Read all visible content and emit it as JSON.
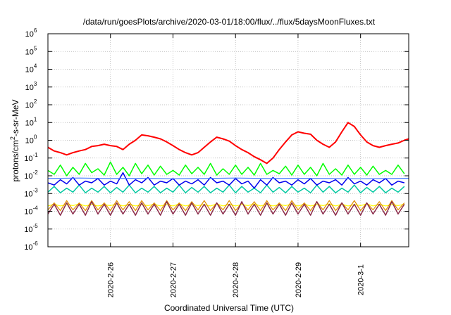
{
  "chart_data": {
    "type": "line",
    "title": "/data/run/goesPlots/archive/2020-03-01/18:00/flux/../flux/5daysMoonFluxes.txt",
    "xlabel": "Coordinated Universal Time (UTC)",
    "ylabel": {
      "pre": "protons/cm",
      "sup": "2",
      "post": "-s-sr-MeV"
    },
    "xlim": [
      0,
      5.77
    ],
    "ylim_exp": [
      -6,
      6
    ],
    "yscale": "log",
    "grid": true,
    "legend": "none",
    "x_ticks": [
      {
        "x": 1,
        "label": "2020-2-26"
      },
      {
        "x": 2,
        "label": "2020-2-27"
      },
      {
        "x": 3,
        "label": "2020-2-28"
      },
      {
        "x": 4,
        "label": "2020-2-29"
      },
      {
        "x": 5,
        "label": "2020-3-1"
      }
    ],
    "y_ticks": [
      {
        "exp": -6,
        "base": "10",
        "sup": "-6"
      },
      {
        "exp": -5,
        "base": "10",
        "sup": "-5"
      },
      {
        "exp": -4,
        "base": "10",
        "sup": "-4"
      },
      {
        "exp": -3,
        "base": "10",
        "sup": "-3"
      },
      {
        "exp": -2,
        "base": "10",
        "sup": "-2"
      },
      {
        "exp": -1,
        "base": "10",
        "sup": "-1"
      },
      {
        "exp": 0,
        "base": "10",
        "sup": "0"
      },
      {
        "exp": 1,
        "base": "10",
        "sup": "1"
      },
      {
        "exp": 2,
        "base": "10",
        "sup": "2"
      },
      {
        "exp": 3,
        "base": "10",
        "sup": "3"
      },
      {
        "exp": 4,
        "base": "10",
        "sup": "4"
      },
      {
        "exp": 5,
        "base": "10",
        "sup": "5"
      },
      {
        "exp": 6,
        "base": "10",
        "sup": "6"
      }
    ],
    "series": [
      {
        "color": "#00ff00",
        "width": 1.5,
        "x": [
          0,
          0.1,
          0.2,
          0.3,
          0.4,
          0.5,
          0.6,
          0.7,
          0.8,
          0.9,
          1.0,
          1.1,
          1.2,
          1.3,
          1.4,
          1.5,
          1.6,
          1.7,
          1.8,
          1.9,
          2.0,
          2.1,
          2.2,
          2.3,
          2.4,
          2.5,
          2.6,
          2.7,
          2.8,
          2.9,
          3.0,
          3.1,
          3.2,
          3.3,
          3.4,
          3.5,
          3.6,
          3.7,
          3.8,
          3.9,
          4.0,
          4.1,
          4.2,
          4.3,
          4.4,
          4.5,
          4.6,
          4.7,
          4.8,
          4.9,
          5.0,
          5.1,
          5.2,
          5.3,
          5.4,
          5.5,
          5.6,
          5.7
        ],
        "y": [
          0.02,
          0.012,
          0.04,
          0.01,
          0.03,
          0.012,
          0.05,
          0.015,
          0.025,
          0.011,
          0.06,
          0.012,
          0.03,
          0.01,
          0.05,
          0.013,
          0.04,
          0.011,
          0.035,
          0.012,
          0.02,
          0.011,
          0.04,
          0.013,
          0.03,
          0.012,
          0.05,
          0.011,
          0.025,
          0.012,
          0.04,
          0.012,
          0.03,
          0.011,
          0.05,
          0.012,
          0.02,
          0.013,
          0.035,
          0.011,
          0.04,
          0.012,
          0.03,
          0.01,
          0.05,
          0.012,
          0.025,
          0.011,
          0.04,
          0.012,
          0.03,
          0.011,
          0.035,
          0.012,
          0.02,
          0.012,
          0.04,
          0.013
        ]
      },
      {
        "color": "#00c8a0",
        "width": 1.5,
        "x": [
          0,
          0.1,
          0.2,
          0.3,
          0.4,
          0.5,
          0.6,
          0.7,
          0.8,
          0.9,
          1.0,
          1.1,
          1.2,
          1.3,
          1.4,
          1.5,
          1.6,
          1.7,
          1.8,
          1.9,
          2.0,
          2.1,
          2.2,
          2.3,
          2.4,
          2.5,
          2.6,
          2.7,
          2.8,
          2.9,
          3.0,
          3.1,
          3.2,
          3.3,
          3.4,
          3.5,
          3.6,
          3.7,
          3.8,
          3.9,
          4.0,
          4.1,
          4.2,
          4.3,
          4.4,
          4.5,
          4.6,
          4.7,
          4.8,
          4.9,
          5.0,
          5.1,
          5.2,
          5.3,
          5.4,
          5.5,
          5.6,
          5.7
        ],
        "y": [
          0.0012,
          0.0025,
          0.0011,
          0.002,
          0.0012,
          0.003,
          0.0011,
          0.002,
          0.0012,
          0.0025,
          0.0011,
          0.0022,
          0.0012,
          0.003,
          0.0011,
          0.002,
          0.0012,
          0.0025,
          0.0011,
          0.002,
          0.0012,
          0.003,
          0.0011,
          0.0022,
          0.0012,
          0.0025,
          0.0011,
          0.002,
          0.0012,
          0.003,
          0.0011,
          0.0025,
          0.0012,
          0.002,
          0.0011,
          0.003,
          0.0012,
          0.0022,
          0.0011,
          0.0025,
          0.0012,
          0.002,
          0.0011,
          0.003,
          0.0012,
          0.0025,
          0.0011,
          0.002,
          0.0012,
          0.003,
          0.0011,
          0.0022,
          0.0012,
          0.0025,
          0.0011,
          0.002,
          0.0012,
          0.0025
        ]
      },
      {
        "color": "#0000ee",
        "width": 1.5,
        "x": [
          0,
          0.1,
          0.2,
          0.3,
          0.4,
          0.5,
          0.6,
          0.7,
          0.8,
          0.9,
          1.0,
          1.1,
          1.2,
          1.3,
          1.4,
          1.5,
          1.6,
          1.7,
          1.8,
          1.9,
          2.0,
          2.1,
          2.2,
          2.3,
          2.4,
          2.5,
          2.6,
          2.7,
          2.8,
          2.9,
          3.0,
          3.1,
          3.2,
          3.3,
          3.4,
          3.5,
          3.6,
          3.7,
          3.8,
          3.9,
          4.0,
          4.1,
          4.2,
          4.3,
          4.4,
          4.5,
          4.6,
          4.7,
          4.8,
          4.9,
          5.0,
          5.1,
          5.2,
          5.3,
          5.4,
          5.5,
          5.6,
          5.7
        ],
        "y": [
          0.004,
          0.003,
          0.006,
          0.0035,
          0.008,
          0.003,
          0.005,
          0.004,
          0.007,
          0.003,
          0.005,
          0.0035,
          0.015,
          0.003,
          0.006,
          0.004,
          0.008,
          0.003,
          0.005,
          0.004,
          0.007,
          0.003,
          0.005,
          0.0035,
          0.006,
          0.003,
          0.008,
          0.004,
          0.005,
          0.003,
          0.007,
          0.0035,
          0.005,
          0.002,
          0.006,
          0.003,
          0.008,
          0.004,
          0.005,
          0.003,
          0.006,
          0.0035,
          0.007,
          0.003,
          0.005,
          0.004,
          0.006,
          0.003,
          0.008,
          0.0035,
          0.005,
          0.003,
          0.006,
          0.004,
          0.007,
          0.003,
          0.005,
          0.004
        ]
      },
      {
        "color": "#4477ff",
        "width": 1.2,
        "x": [
          0,
          0.5,
          1.0,
          1.5,
          2.0,
          2.5,
          3.0,
          3.5,
          4.0,
          4.5,
          5.0,
          5.5,
          5.77
        ],
        "y": [
          0.007,
          0.0075,
          0.007,
          0.0072,
          0.0068,
          0.007,
          0.0075,
          0.007,
          0.0072,
          0.007,
          0.0068,
          0.007,
          0.0072
        ]
      },
      {
        "color": "#ff0000",
        "width": 2.0,
        "x": [
          0,
          0.1,
          0.2,
          0.3,
          0.4,
          0.5,
          0.6,
          0.7,
          0.8,
          0.9,
          1.0,
          1.1,
          1.2,
          1.3,
          1.4,
          1.5,
          1.6,
          1.7,
          1.8,
          1.9,
          2.0,
          2.1,
          2.2,
          2.3,
          2.4,
          2.5,
          2.6,
          2.7,
          2.8,
          2.9,
          3.0,
          3.1,
          3.2,
          3.3,
          3.4,
          3.5,
          3.6,
          3.7,
          3.8,
          3.9,
          4.0,
          4.1,
          4.2,
          4.3,
          4.4,
          4.5,
          4.6,
          4.7,
          4.8,
          4.9,
          5.0,
          5.1,
          5.2,
          5.3,
          5.4,
          5.5,
          5.6,
          5.7,
          5.77
        ],
        "y": [
          0.4,
          0.25,
          0.2,
          0.15,
          0.2,
          0.25,
          0.3,
          0.45,
          0.5,
          0.6,
          0.5,
          0.45,
          0.3,
          0.6,
          1.0,
          2.0,
          1.8,
          1.5,
          1.2,
          0.8,
          0.5,
          0.3,
          0.2,
          0.15,
          0.2,
          0.4,
          0.8,
          1.5,
          1.2,
          0.9,
          0.5,
          0.3,
          0.2,
          0.12,
          0.08,
          0.05,
          0.1,
          0.3,
          0.8,
          2.0,
          3.0,
          2.5,
          2.2,
          1.0,
          0.6,
          0.4,
          0.8,
          3.0,
          10.0,
          6.0,
          2.0,
          0.8,
          0.5,
          0.4,
          0.5,
          0.6,
          0.7,
          1.0,
          1.2
        ]
      },
      {
        "color": "#ffff00",
        "width": 1.2,
        "x": [
          0,
          0.1,
          0.2,
          0.3,
          0.4,
          0.5,
          0.6,
          0.7,
          0.8,
          0.9,
          1.0,
          1.1,
          1.2,
          1.3,
          1.4,
          1.5,
          1.6,
          1.7,
          1.8,
          1.9,
          2.0,
          2.1,
          2.2,
          2.3,
          2.4,
          2.5,
          2.6,
          2.7,
          2.8,
          2.9,
          3.0,
          3.1,
          3.2,
          3.3,
          3.4,
          3.5,
          3.6,
          3.7,
          3.8,
          3.9,
          4.0,
          4.1,
          4.2,
          4.3,
          4.4,
          4.5,
          4.6,
          4.7,
          4.8,
          4.9,
          5.0,
          5.1,
          5.2,
          5.3,
          5.4,
          5.5,
          5.6,
          5.7
        ],
        "y": [
          0.0002,
          0.00025,
          0.0002,
          0.00024,
          0.00021,
          0.00026,
          0.0002,
          0.00025,
          0.0002,
          0.00023,
          0.00021,
          0.00026,
          0.0002,
          0.00025,
          0.0002,
          0.00024,
          0.00021,
          0.00025,
          0.0002,
          0.00024,
          0.0002,
          0.00026,
          0.0002,
          0.00025,
          0.00021,
          0.00024,
          0.0002,
          0.00026,
          0.0002,
          0.00025,
          0.0002,
          0.00024,
          0.00021,
          0.00026,
          0.0002,
          0.00025,
          0.0002,
          0.00024,
          0.00021,
          0.00026,
          0.0002,
          0.00025,
          0.0002,
          0.00024,
          0.00021,
          0.00026,
          0.0002,
          0.00025,
          0.0002,
          0.00024,
          0.00021,
          0.00026,
          0.0002,
          0.00025,
          0.0002,
          0.00024,
          0.00021,
          0.00025
        ]
      },
      {
        "color": "#e08a00",
        "width": 1.2,
        "x": [
          0,
          0.1,
          0.2,
          0.3,
          0.4,
          0.5,
          0.6,
          0.7,
          0.8,
          0.9,
          1.0,
          1.1,
          1.2,
          1.3,
          1.4,
          1.5,
          1.6,
          1.7,
          1.8,
          1.9,
          2.0,
          2.1,
          2.2,
          2.3,
          2.4,
          2.5,
          2.6,
          2.7,
          2.8,
          2.9,
          3.0,
          3.1,
          3.2,
          3.3,
          3.4,
          3.5,
          3.6,
          3.7,
          3.8,
          3.9,
          4.0,
          4.1,
          4.2,
          4.3,
          4.4,
          4.5,
          4.6,
          4.7,
          4.8,
          4.9,
          5.0,
          5.1,
          5.2,
          5.3,
          5.4,
          5.5,
          5.6,
          5.7
        ],
        "y": [
          0.00012,
          0.0003,
          0.00011,
          0.0004,
          0.00012,
          0.0003,
          0.00011,
          0.0004,
          0.00012,
          0.0003,
          0.00011,
          0.0004,
          0.00012,
          0.00035,
          0.00011,
          0.0004,
          0.00012,
          0.0003,
          0.00011,
          0.0004,
          0.00012,
          0.0003,
          0.00011,
          0.00035,
          0.00012,
          0.0004,
          0.00011,
          0.0003,
          0.00012,
          0.0004,
          0.00011,
          0.0003,
          0.00012,
          0.00035,
          0.00011,
          0.0004,
          0.00012,
          0.0003,
          0.00011,
          0.0004,
          0.00012,
          0.0003,
          0.00011,
          0.00035,
          0.00012,
          0.0004,
          0.00011,
          0.0003,
          0.00012,
          0.0004,
          0.00011,
          0.0003,
          0.00012,
          0.00035,
          0.00011,
          0.0004,
          0.00012,
          0.0003
        ]
      },
      {
        "color": "#8b2a4a",
        "width": 1.5,
        "x": [
          0,
          0.1,
          0.2,
          0.3,
          0.4,
          0.5,
          0.6,
          0.7,
          0.8,
          0.9,
          1.0,
          1.1,
          1.2,
          1.3,
          1.4,
          1.5,
          1.6,
          1.7,
          1.8,
          1.9,
          2.0,
          2.1,
          2.2,
          2.3,
          2.4,
          2.5,
          2.6,
          2.7,
          2.8,
          2.9,
          3.0,
          3.1,
          3.2,
          3.3,
          3.4,
          3.5,
          3.6,
          3.7,
          3.8,
          3.9,
          4.0,
          4.1,
          4.2,
          4.3,
          4.4,
          4.5,
          4.6,
          4.7,
          4.8,
          4.9,
          5.0,
          5.1,
          5.2,
          5.3,
          5.4,
          5.5,
          5.6,
          5.7
        ],
        "y": [
          7e-05,
          0.00025,
          6e-05,
          0.0003,
          7e-05,
          0.00025,
          6e-05,
          0.00035,
          7e-05,
          0.00025,
          6e-05,
          0.0003,
          7e-05,
          0.00025,
          6e-05,
          0.0003,
          7e-05,
          0.00025,
          6e-05,
          0.00035,
          7e-05,
          0.00025,
          6e-05,
          0.0003,
          7e-05,
          0.00025,
          6e-05,
          0.0003,
          7e-05,
          0.00025,
          6e-05,
          0.00035,
          7e-05,
          0.00025,
          6e-05,
          0.0003,
          7e-05,
          0.00025,
          6e-05,
          0.0003,
          7e-05,
          0.00025,
          6e-05,
          0.00035,
          7e-05,
          0.00025,
          6e-05,
          0.0003,
          7e-05,
          0.00025,
          6e-05,
          0.0003,
          7e-05,
          0.00025,
          6e-05,
          0.00035,
          7e-05,
          0.00025
        ]
      }
    ]
  }
}
